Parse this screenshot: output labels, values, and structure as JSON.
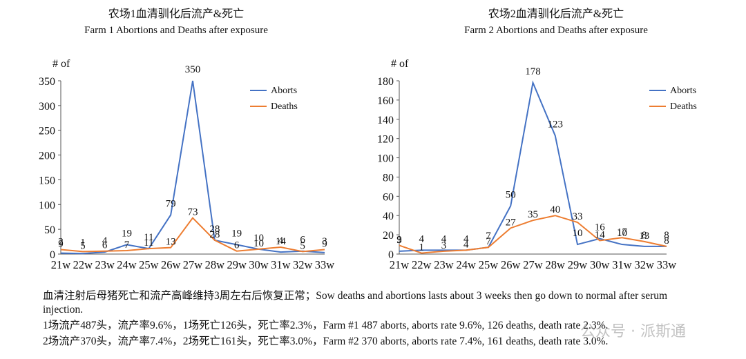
{
  "chart_data": [
    {
      "type": "line",
      "title": "农场1血清驯化后流产&死亡",
      "subtitle": "Farm 1 Abortions and Deaths after exposure",
      "y_label": "# of",
      "categories": [
        "21w",
        "22w",
        "23w",
        "24w",
        "25w",
        "26w",
        "27w",
        "28w",
        "29w",
        "30w",
        "31w",
        "32w",
        "33w"
      ],
      "series": [
        {
          "name": "Aborts",
          "color": "#4472c4",
          "values": [
            2,
            1,
            4,
            19,
            11,
            79,
            350,
            28,
            19,
            10,
            4,
            6,
            3
          ]
        },
        {
          "name": "Deaths",
          "color": "#ed7d31",
          "values": [
            9,
            5,
            6,
            7,
            11,
            13,
            73,
            28,
            6,
            10,
            14,
            5,
            9
          ]
        }
      ],
      "ylim": [
        0,
        350
      ],
      "yticks": [
        0,
        50,
        100,
        150,
        200,
        250,
        300,
        350
      ],
      "legend": "upper right"
    },
    {
      "type": "line",
      "title": "农场2血清驯化后流产&死亡",
      "subtitle": "Farm 2 Abortions and Deaths after exposure",
      "y_label": "# of",
      "categories": [
        "21w",
        "22w",
        "23w",
        "24w",
        "25w",
        "26w",
        "27w",
        "28w",
        "29w",
        "30w",
        "31w",
        "32w",
        "33w"
      ],
      "series": [
        {
          "name": "Aborts",
          "color": "#4472c4",
          "values": [
            3,
            4,
            4,
            4,
            7,
            50,
            178,
            123,
            10,
            16,
            10,
            8,
            8
          ]
        },
        {
          "name": "Deaths",
          "color": "#ed7d31",
          "values": [
            9,
            1,
            3,
            4,
            7,
            27,
            35,
            40,
            33,
            14,
            17,
            13,
            8
          ]
        }
      ],
      "ylim": [
        0,
        180
      ],
      "yticks": [
        0,
        20,
        40,
        60,
        80,
        100,
        120,
        140,
        160,
        180
      ],
      "legend": "upper right"
    }
  ],
  "notes": [
    "血清注射后母猪死亡和流产高峰维持3周左右后恢复正常；Sow deaths and abortions lasts about 3 weeks then go down to normal after serum injection.",
    "1场流产487头，流产率9.6%，1场死亡126头，死亡率2.3%，Farm #1 487 aborts, aborts rate 9.6%, 126 deaths, death rate 2.3%.",
    "2场流产370头，流产率7.4%，2场死亡161头，死亡率3.0%，Farm #2 370 aborts, aborts rate 7.4%, 161 deaths, death rate 3.0%."
  ],
  "watermark": "公众号 · 派斯通"
}
